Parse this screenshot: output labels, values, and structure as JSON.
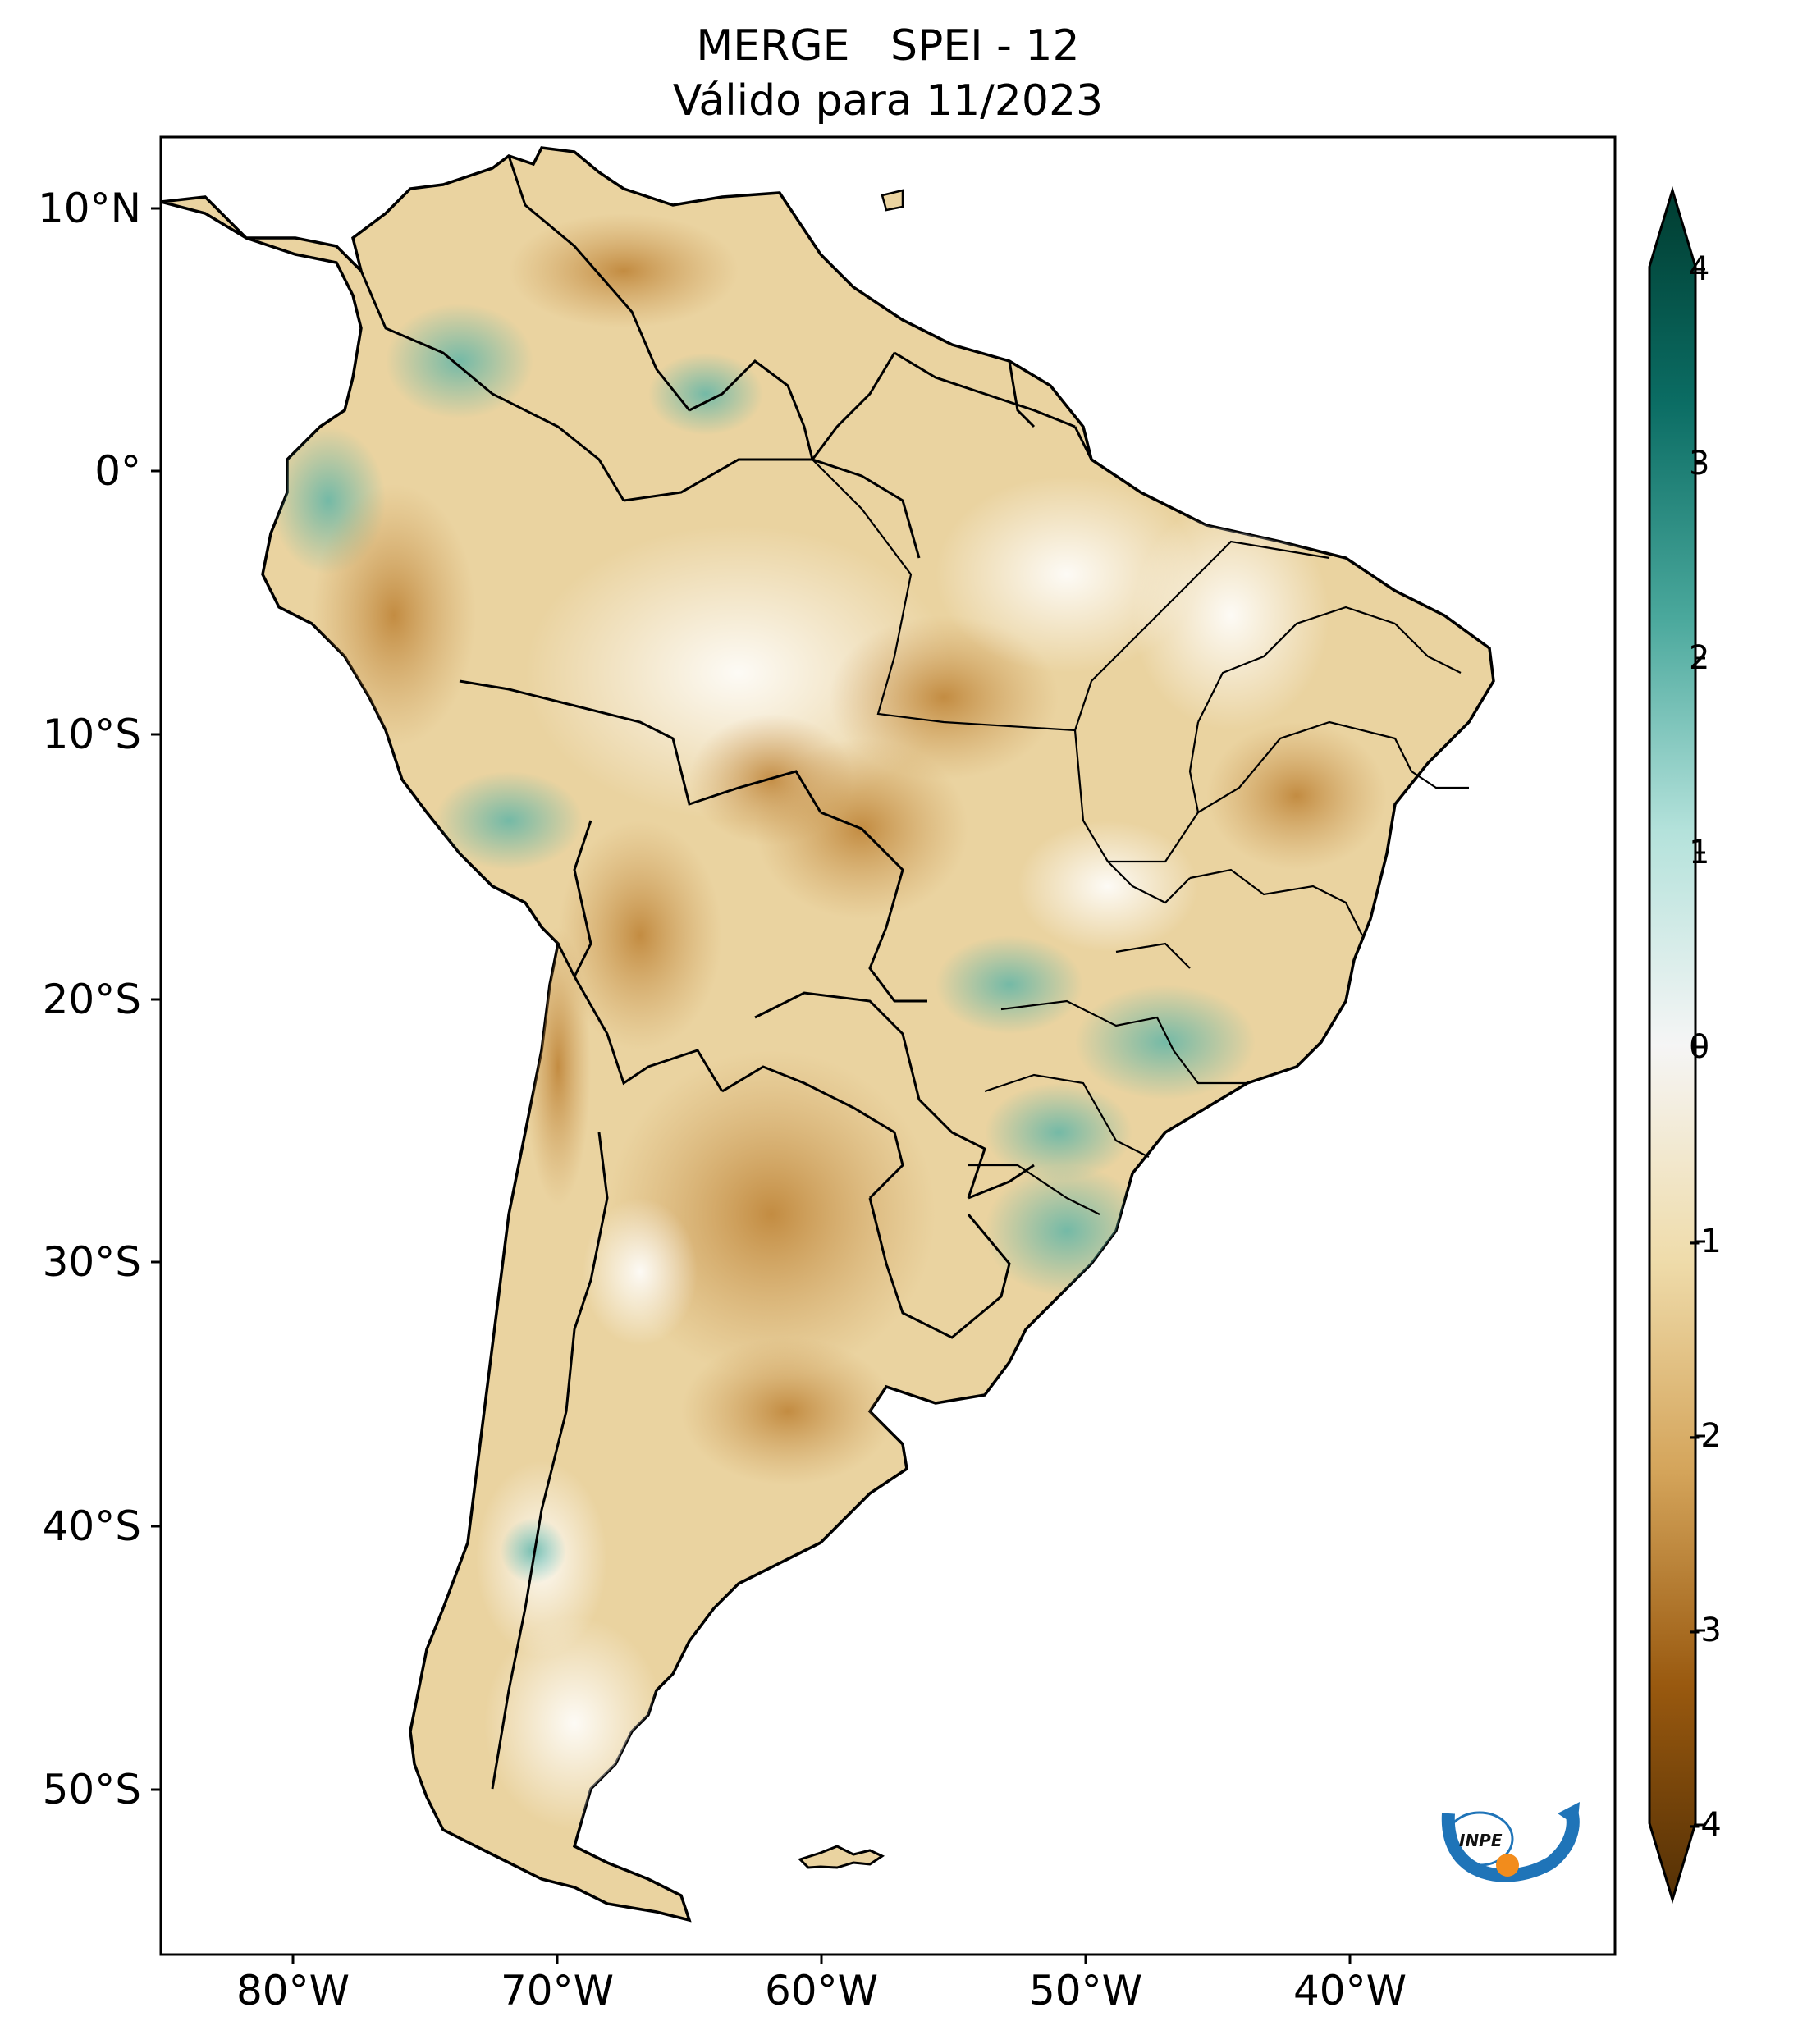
{
  "title": {
    "line1": "MERGE   SPEI - 12",
    "line2": "Válido para 11/2023"
  },
  "axes": {
    "latitude_ticks": [
      "10°N",
      "0°",
      "10°S",
      "20°S",
      "30°S",
      "40°S",
      "50°S"
    ],
    "longitude_ticks": [
      "80°W",
      "70°W",
      "60°W",
      "50°W",
      "40°W"
    ],
    "lat_range": [
      -56,
      12.5
    ],
    "lon_range": [
      -85,
      -30
    ]
  },
  "colorbar": {
    "ticks": [
      "4",
      "3",
      "2",
      "1",
      "0",
      "-1",
      "-2",
      "-3",
      "-4"
    ],
    "range": [
      -4,
      4
    ],
    "colors": {
      "max": "#003c30",
      "p3": "#0b6d64",
      "p2": "#4aa89c",
      "p1": "#b4e2db",
      "zero": "#f5f5f5",
      "m1": "#efdcab",
      "m2": "#d4a45a",
      "m3": "#99590f",
      "min": "#543005"
    }
  },
  "logo": {
    "text": "INPE",
    "colors": {
      "blue": "#1f74b8",
      "orange": "#f28c1c"
    }
  }
}
